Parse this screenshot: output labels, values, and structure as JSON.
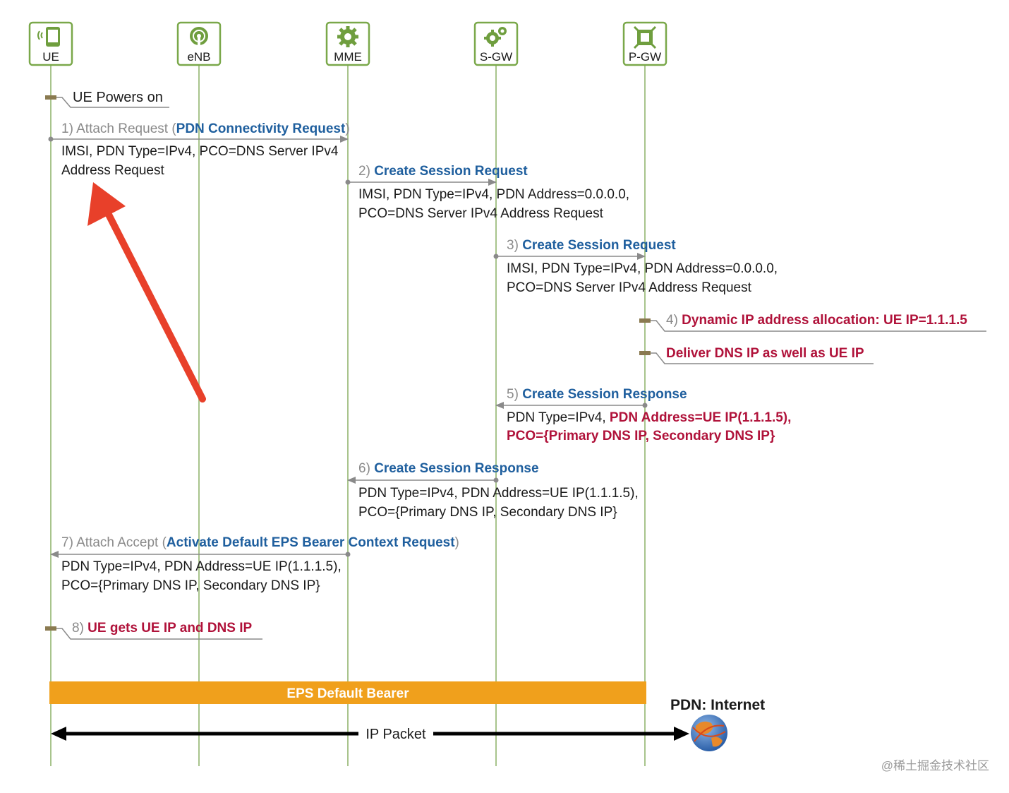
{
  "nodes": [
    "UE",
    "eNB",
    "MME",
    "S-GW",
    "P-GW"
  ],
  "notes": {
    "ue_powers_on": "UE Powers on",
    "step4": "4) Dynamic IP address allocation: UE IP=1.1.1.5",
    "deliver_dns": "Deliver DNS IP as well as UE IP",
    "step8": "8) UE gets UE IP and DNS IP"
  },
  "messages": {
    "m1": {
      "title_gray": "1) Attach Request (",
      "title_blue": "PDN Connectivity Request",
      "title_close": ")",
      "line1": "IMSI, PDN Type=IPv4, PCO=DNS Server IPv4",
      "line2": "Address Request"
    },
    "m2": {
      "num": "2)",
      "title": "Create Session Request",
      "line1": "IMSI, PDN Type=IPv4, PDN Address=0.0.0.0,",
      "line2": "PCO=DNS Server IPv4 Address Request"
    },
    "m3": {
      "num": "3)",
      "title": "Create Session Request",
      "line1": "IMSI, PDN Type=IPv4, PDN Address=0.0.0.0,",
      "line2": "PCO=DNS Server IPv4 Address Request"
    },
    "m5": {
      "num": "5)",
      "title": "Create Session Response",
      "line1_plain": "PDN Type=IPv4, ",
      "line1_red": "PDN Address=UE IP(1.1.1.5),",
      "line2_red": "PCO={Primary DNS IP, Secondary DNS IP}"
    },
    "m6": {
      "num": "6)",
      "title": "Create Session Response",
      "line1": "PDN Type=IPv4, PDN Address=UE IP(1.1.1.5),",
      "line2": "PCO={Primary DNS IP, Secondary DNS IP}"
    },
    "m7": {
      "title_gray": "7) Attach Accept (",
      "title_blue": "Activate Default EPS Bearer Context Request",
      "title_close": ")",
      "line1": "PDN Type=IPv4, PDN Address=UE IP(1.1.1.5),",
      "line2": "PCO={Primary DNS IP, Secondary DNS IP}"
    }
  },
  "bearer_label": "EPS Default Bearer",
  "ip_packet_label": "IP Packet",
  "pdn_label": "PDN: Internet",
  "watermark": "@稀土掘金技术社区",
  "colors": {
    "node_border": "#7aa84a",
    "node_icon": "#6f9e3e",
    "lifeline": "#a8c48c",
    "gray_text": "#8a8a8a",
    "blue_text": "#1f5f9e",
    "red_text": "#b0123a",
    "bearer": "#f0a01c",
    "annotation_arrow": "#e8402a"
  },
  "icons": [
    "phone-icon",
    "antenna-icon",
    "gear-icon",
    "gears-icon",
    "router-icon",
    "globe-icon"
  ]
}
